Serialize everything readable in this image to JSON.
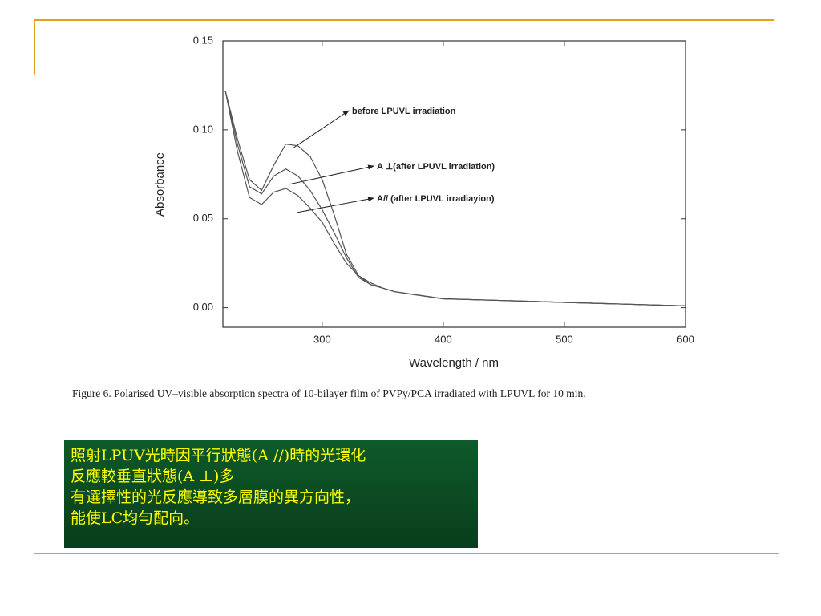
{
  "chart_data": {
    "type": "line",
    "x_label": "Wavelength / nm",
    "y_label": "Absorbance",
    "caption": "Figure 6. Polarised UV–visible absorption spectra of 10-bilayer film of PVPy/PCA irradiated with LPUVL for 10 min.",
    "x": [
      220,
      230,
      240,
      250,
      260,
      270,
      280,
      290,
      300,
      310,
      320,
      330,
      340,
      350,
      360,
      380,
      400,
      450,
      500,
      550,
      600
    ],
    "series": [
      {
        "name": "before LPUVL irradiation",
        "color": "#555555",
        "values": [
          0.122,
          0.095,
          0.072,
          0.066,
          0.08,
          0.092,
          0.091,
          0.085,
          0.072,
          0.052,
          0.03,
          0.018,
          0.013,
          0.011,
          0.009,
          0.007,
          0.005,
          0.004,
          0.003,
          0.002,
          0.001
        ]
      },
      {
        "name": "A ⊥(after LPUVL irradiation)",
        "color": "#555555",
        "values": [
          0.122,
          0.092,
          0.068,
          0.064,
          0.074,
          0.078,
          0.074,
          0.066,
          0.055,
          0.042,
          0.028,
          0.017,
          0.013,
          0.011,
          0.009,
          0.007,
          0.005,
          0.004,
          0.003,
          0.002,
          0.001
        ]
      },
      {
        "name": "A// (after LPUVL irradiayion)",
        "color": "#555555",
        "values": [
          0.122,
          0.088,
          0.062,
          0.058,
          0.065,
          0.067,
          0.063,
          0.056,
          0.048,
          0.036,
          0.025,
          0.018,
          0.014,
          0.011,
          0.009,
          0.007,
          0.005,
          0.004,
          0.003,
          0.002,
          0.001
        ]
      }
    ],
    "xlim": [
      218,
      600
    ],
    "xticks": [
      300,
      400,
      500,
      600
    ],
    "ylim": [
      -0.011,
      0.15
    ],
    "yticks": [
      {
        "value": 0,
        "label": "0.00"
      },
      0.05,
      {
        "value": 0.1,
        "label": "0.10"
      },
      0.15
    ],
    "grid": false
  },
  "note": {
    "lines": [
      "照射LPUV光時因平行狀態(A //)時的光環化",
      "反應較垂直狀態(A ⊥)多",
      "有選擇性的光反應導致多層膜的異方向性，",
      "能使LC均勻配向。"
    ]
  }
}
